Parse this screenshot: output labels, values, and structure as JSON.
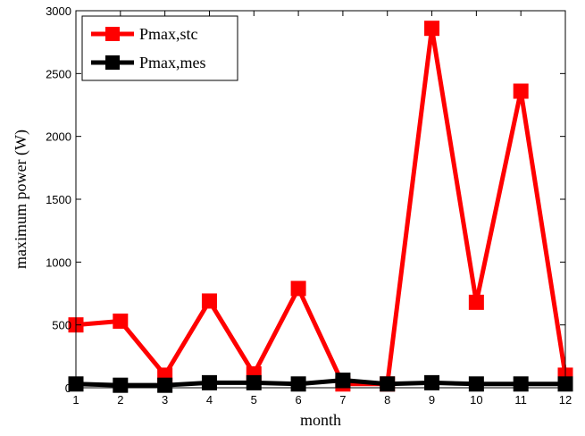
{
  "chart_data": {
    "type": "line",
    "title": "",
    "xlabel": "month",
    "ylabel": "maximum power (W)",
    "xlim": [
      1,
      12
    ],
    "ylim": [
      0,
      3000
    ],
    "x": [
      1,
      2,
      3,
      4,
      5,
      6,
      7,
      8,
      9,
      10,
      11,
      12
    ],
    "xticks": [
      "1",
      "2",
      "3",
      "4",
      "5",
      "6",
      "7",
      "8",
      "9",
      "10",
      "11",
      "12"
    ],
    "yticks": [
      "0",
      "500",
      "1000",
      "1500",
      "2000",
      "2500",
      "3000"
    ],
    "grid": false,
    "legend_position": "top-left",
    "series": [
      {
        "name": "Pmax,stc",
        "color": "#ff0000",
        "marker": "square",
        "values": [
          500,
          530,
          100,
          690,
          110,
          790,
          30,
          30,
          2860,
          680,
          2360,
          100
        ]
      },
      {
        "name": "Pmax,mes",
        "color": "#000000",
        "marker": "square",
        "values": [
          30,
          20,
          20,
          40,
          40,
          30,
          60,
          30,
          40,
          30,
          30,
          30
        ]
      }
    ]
  }
}
